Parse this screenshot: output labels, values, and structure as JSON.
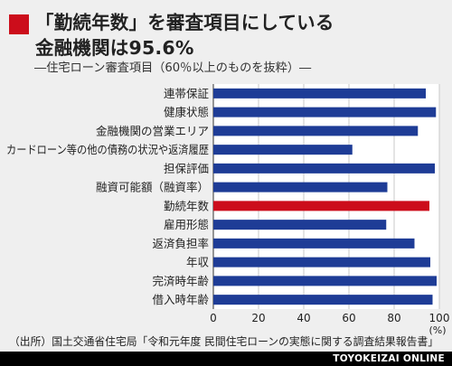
{
  "title": {
    "line1": "「勤続年数」を審査項目にしている",
    "line2": "金融機関は95.6%"
  },
  "subtitle": "―住宅ローン審査項目（60％以上のものを抜粋）―",
  "source": "（出所）国土交通省住宅局「令和元年度 民間住宅ローンの実態に関する調査結果報告書」",
  "brand": "TOYOKEIZAI ONLINE",
  "colors": {
    "bar": "#1e3c96",
    "highlight": "#cc0d1b",
    "title_mark": "#cc0d1b",
    "background": "#efefef"
  },
  "chart_data": {
    "type": "bar",
    "orientation": "horizontal",
    "categories": [
      "連帯保証",
      "健康状態",
      "金融機関の営業エリア",
      "カードローン等の他の債務の状況や返済履歴",
      "担保評価",
      "融資可能額（融資率）",
      "勤続年数",
      "雇用形態",
      "返済負担率",
      "年収",
      "完済時年齢",
      "借入時年齢"
    ],
    "values": [
      94,
      98.5,
      90.5,
      61.5,
      98,
      77,
      95.6,
      76.5,
      89,
      96,
      98.8,
      97
    ],
    "highlight_category": "勤続年数",
    "xlim": [
      0,
      100
    ],
    "x_ticks": [
      0,
      20,
      40,
      60,
      80,
      100
    ],
    "x_unit": "(%)",
    "grid": true
  }
}
